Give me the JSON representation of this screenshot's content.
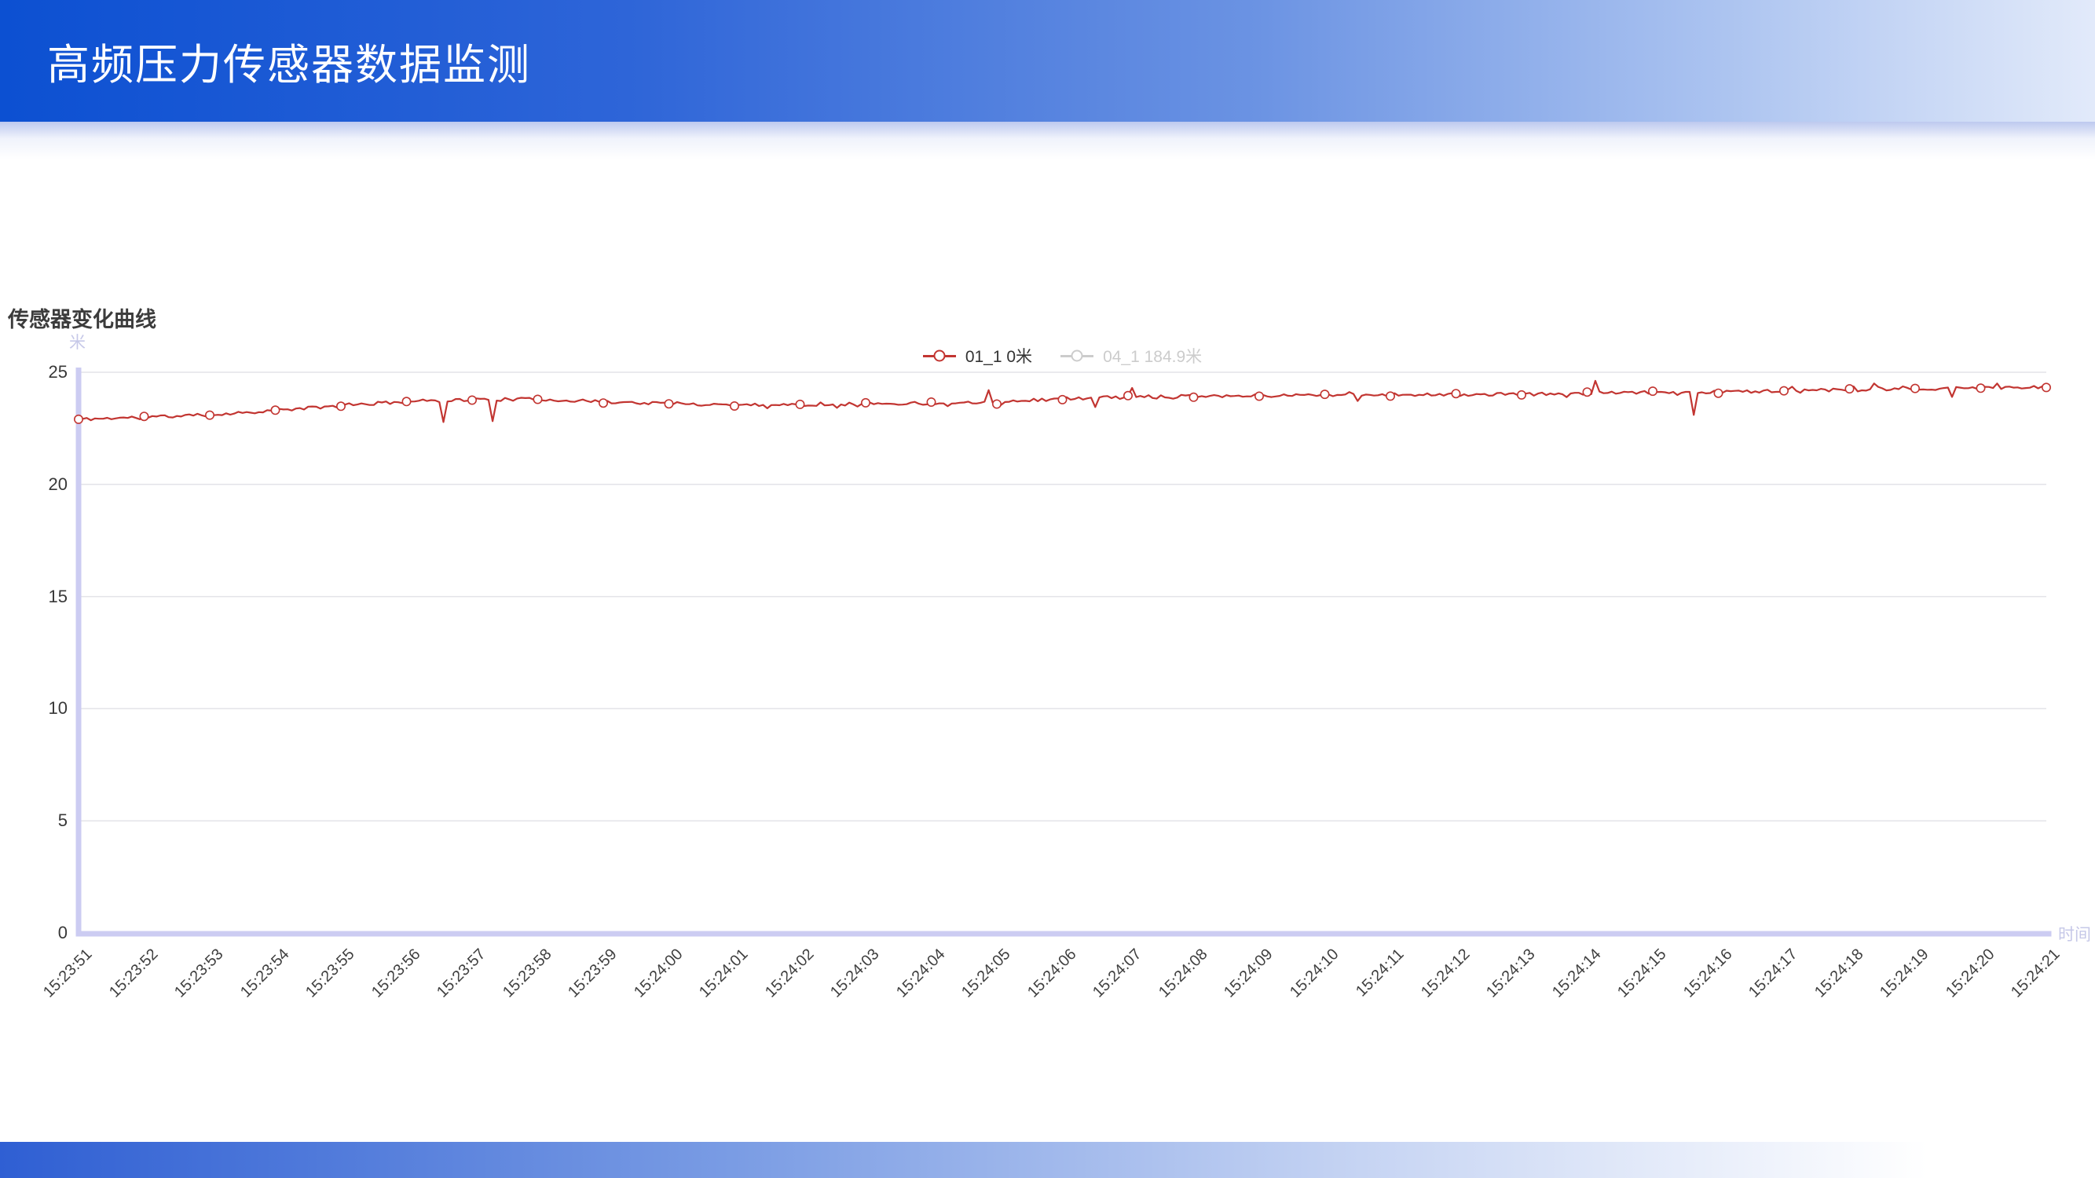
{
  "header": {
    "title": "高频压力传感器数据监测"
  },
  "chart": {
    "title": "传感器变化曲线",
    "y_axis_name": "米",
    "x_axis_name": "时间",
    "legend": [
      {
        "label": "01_1 0米",
        "color": "#c23531",
        "active": true
      },
      {
        "label": "04_1 184.9米",
        "color": "#cccccc",
        "active": false
      }
    ]
  },
  "colors": {
    "series_red": "#c23531",
    "legend_disabled": "#cccccc",
    "axis_line": "#ccccf2",
    "grid_line": "#e3e3e8"
  },
  "chart_data": {
    "type": "line",
    "title": "传感器变化曲线",
    "ylabel": "米",
    "xlabel": "时间",
    "ylim": [
      0,
      25
    ],
    "y_ticks": [
      0,
      5,
      10,
      15,
      20,
      25
    ],
    "grid": true,
    "legend_position": "top-center",
    "categories": [
      "15:23:51",
      "15:23:52",
      "15:23:53",
      "15:23:54",
      "15:23:55",
      "15:23:56",
      "15:23:57",
      "15:23:58",
      "15:23:59",
      "15:24:00",
      "15:24:01",
      "15:24:02",
      "15:24:03",
      "15:24:04",
      "15:24:05",
      "15:24:06",
      "15:24:07",
      "15:24:08",
      "15:24:09",
      "15:24:10",
      "15:24:11",
      "15:24:12",
      "15:24:13",
      "15:24:14",
      "15:24:15",
      "15:24:16",
      "15:24:17",
      "15:24:18",
      "15:24:19",
      "15:24:20",
      "15:24:21"
    ],
    "series": [
      {
        "name": "01_1 0米",
        "color": "#c23531",
        "active": true,
        "values": [
          22.9,
          23.0,
          23.1,
          23.3,
          23.5,
          23.7,
          23.78,
          23.8,
          23.68,
          23.6,
          23.55,
          23.55,
          23.6,
          23.62,
          23.68,
          23.82,
          23.9,
          23.95,
          23.95,
          24.0,
          24.0,
          24.0,
          24.02,
          24.05,
          24.1,
          24.12,
          24.18,
          24.2,
          24.25,
          24.3,
          24.32
        ]
      },
      {
        "name": "04_1 184.9米",
        "color": "#cccccc",
        "active": false,
        "values": []
      }
    ],
    "spikes": [
      {
        "t": 5.55,
        "value": 22.78
      },
      {
        "t": 6.3,
        "value": 22.82
      },
      {
        "t": 13.9,
        "value": 24.2
      },
      {
        "t": 15.5,
        "value": 23.45
      },
      {
        "t": 16.05,
        "value": 24.3
      },
      {
        "t": 19.5,
        "value": 23.72
      },
      {
        "t": 23.1,
        "value": 24.62
      },
      {
        "t": 24.6,
        "value": 23.1
      },
      {
        "t": 27.35,
        "value": 24.5
      },
      {
        "t": 28.55,
        "value": 23.9
      },
      {
        "t": 29.25,
        "value": 24.5
      }
    ],
    "noise_amplitude": 0.07
  }
}
